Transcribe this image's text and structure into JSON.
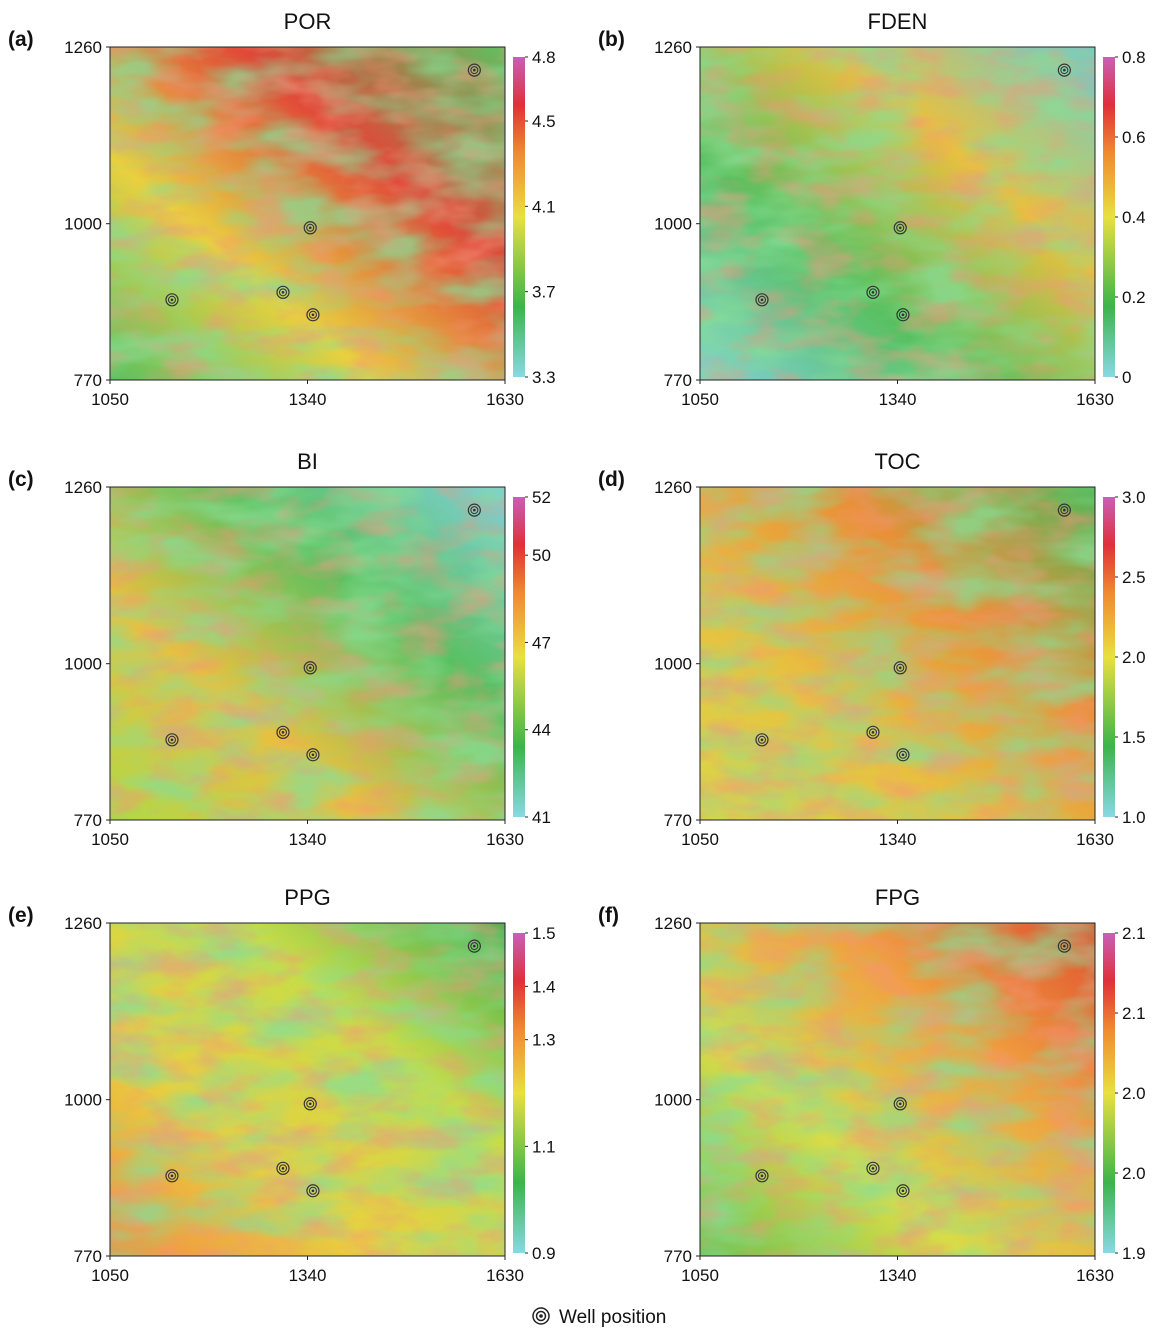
{
  "chart_data": [
    {
      "type": "heatmap",
      "label": "(a)",
      "title": "POR",
      "xlim": [
        1050,
        1630
      ],
      "xticks": [
        1050,
        1340,
        1630
      ],
      "ylim": [
        770,
        1260
      ],
      "yticks": [
        770,
        1000,
        1260
      ],
      "colorbar_lim": [
        3.3,
        4.8
      ],
      "colorbar_ticks": [
        3.3,
        3.7,
        4.1,
        4.5,
        4.8
      ],
      "wells": {
        "x": [
          1141,
          1304,
          1344,
          1348,
          1585
        ],
        "y": [
          888,
          899,
          994,
          866,
          1226
        ]
      }
    },
    {
      "type": "heatmap",
      "label": "(b)",
      "title": "FDEN",
      "xlim": [
        1050,
        1630
      ],
      "xticks": [
        1050,
        1340,
        1630
      ],
      "ylim": [
        770,
        1260
      ],
      "yticks": [
        770,
        1000,
        1260
      ],
      "colorbar_lim": [
        0,
        0.8
      ],
      "colorbar_ticks": [
        0,
        0.2,
        0.4,
        0.6,
        0.8
      ],
      "wells": {
        "x": [
          1141,
          1304,
          1344,
          1348,
          1585
        ],
        "y": [
          888,
          899,
          994,
          866,
          1226
        ]
      }
    },
    {
      "type": "heatmap",
      "label": "(c)",
      "title": "BI",
      "xlim": [
        1050,
        1630
      ],
      "xticks": [
        1050,
        1340,
        1630
      ],
      "ylim": [
        770,
        1260
      ],
      "yticks": [
        770,
        1000,
        1260
      ],
      "colorbar_lim": [
        41,
        52
      ],
      "colorbar_ticks": [
        41,
        44,
        47,
        50,
        52
      ],
      "wells": {
        "x": [
          1141,
          1304,
          1344,
          1348,
          1585
        ],
        "y": [
          888,
          899,
          994,
          866,
          1226
        ]
      }
    },
    {
      "type": "heatmap",
      "label": "(d)",
      "title": "TOC",
      "xlim": [
        1050,
        1630
      ],
      "xticks": [
        1050,
        1340,
        1630
      ],
      "ylim": [
        770,
        1260
      ],
      "yticks": [
        770,
        1000,
        1260
      ],
      "colorbar_lim": [
        1.0,
        3.0
      ],
      "colorbar_ticks": [
        {
          "value": 1.0,
          "label": "1.0"
        },
        1.5,
        {
          "value": 2.0,
          "label": "2.0"
        },
        2.5,
        {
          "value": 3.0,
          "label": "3.0"
        }
      ],
      "wells": {
        "x": [
          1141,
          1304,
          1344,
          1348,
          1585
        ],
        "y": [
          888,
          899,
          994,
          866,
          1226
        ]
      }
    },
    {
      "type": "heatmap",
      "label": "(e)",
      "title": "PPG",
      "xlim": [
        1050,
        1630
      ],
      "xticks": [
        1050,
        1340,
        1630
      ],
      "ylim": [
        770,
        1260
      ],
      "yticks": [
        770,
        1000,
        1260
      ],
      "colorbar_lim": [
        0.9,
        1.5
      ],
      "colorbar_ticks": [
        0.9,
        1.1,
        1.3,
        1.4,
        1.5
      ],
      "wells": {
        "x": [
          1141,
          1304,
          1344,
          1348,
          1585
        ],
        "y": [
          888,
          899,
          994,
          866,
          1226
        ]
      }
    },
    {
      "type": "heatmap",
      "label": "(f)",
      "title": "FPG",
      "xlim": [
        1050,
        1630
      ],
      "xticks": [
        1050,
        1340,
        1630
      ],
      "ylim": [
        770,
        1260
      ],
      "yticks": [
        770,
        1000,
        1260
      ],
      "colorbar_lim": [
        1.9,
        2.1
      ],
      "colorbar_ticks": [
        1.9,
        {
          "value": 1.95,
          "label": "2.0"
        },
        {
          "value": 2.0,
          "label": "2.0"
        },
        {
          "value": 2.05,
          "label": "2.1"
        },
        2.1
      ],
      "wells": {
        "x": [
          1141,
          1304,
          1344,
          1348,
          1585
        ],
        "y": [
          888,
          899,
          994,
          866,
          1226
        ]
      }
    }
  ],
  "legend": "Well position"
}
